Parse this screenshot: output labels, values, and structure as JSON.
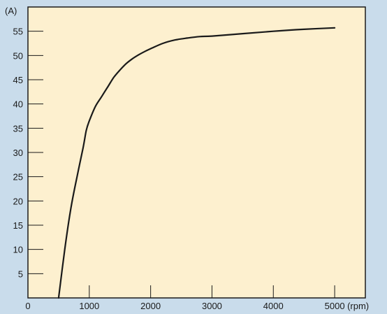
{
  "colors": {
    "background": "#c9dceb",
    "plot_area": "#fdf0cf",
    "axis": "#1a1a1a",
    "curve": "#1a1a1a"
  },
  "chart_data": {
    "type": "line",
    "title": "",
    "xlabel": "",
    "ylabel": "",
    "x_unit": "(rpm)",
    "y_unit": "(A)",
    "xlim": [
      0,
      5500
    ],
    "ylim": [
      0,
      60
    ],
    "x_ticks": [
      0,
      1000,
      2000,
      3000,
      4000,
      5000
    ],
    "x_tick_labels": [
      "0",
      "1000",
      "2000",
      "3000",
      "4000",
      "5000"
    ],
    "y_ticks": [
      5,
      10,
      15,
      20,
      25,
      30,
      35,
      40,
      45,
      50,
      55
    ],
    "y_tick_labels": [
      "5",
      "10",
      "15",
      "20",
      "25",
      "30",
      "35",
      "40",
      "45",
      "50",
      "55"
    ],
    "grid": false,
    "series": [
      {
        "x": [
          500,
          600,
          700,
          800,
          900,
          950,
          1000,
          1100,
          1200,
          1300,
          1400,
          1500,
          1600,
          1700,
          1800,
          1900,
          2000,
          2200,
          2400,
          2600,
          2800,
          3000,
          3500,
          4000,
          4500,
          5000
        ],
        "values": [
          0,
          10,
          18.5,
          25,
          31,
          34.5,
          36.5,
          39.5,
          41.5,
          43.5,
          45.5,
          47,
          48.3,
          49.3,
          50.1,
          50.8,
          51.4,
          52.5,
          53.2,
          53.6,
          53.9,
          54,
          54.5,
          55,
          55.4,
          55.7
        ]
      }
    ]
  }
}
